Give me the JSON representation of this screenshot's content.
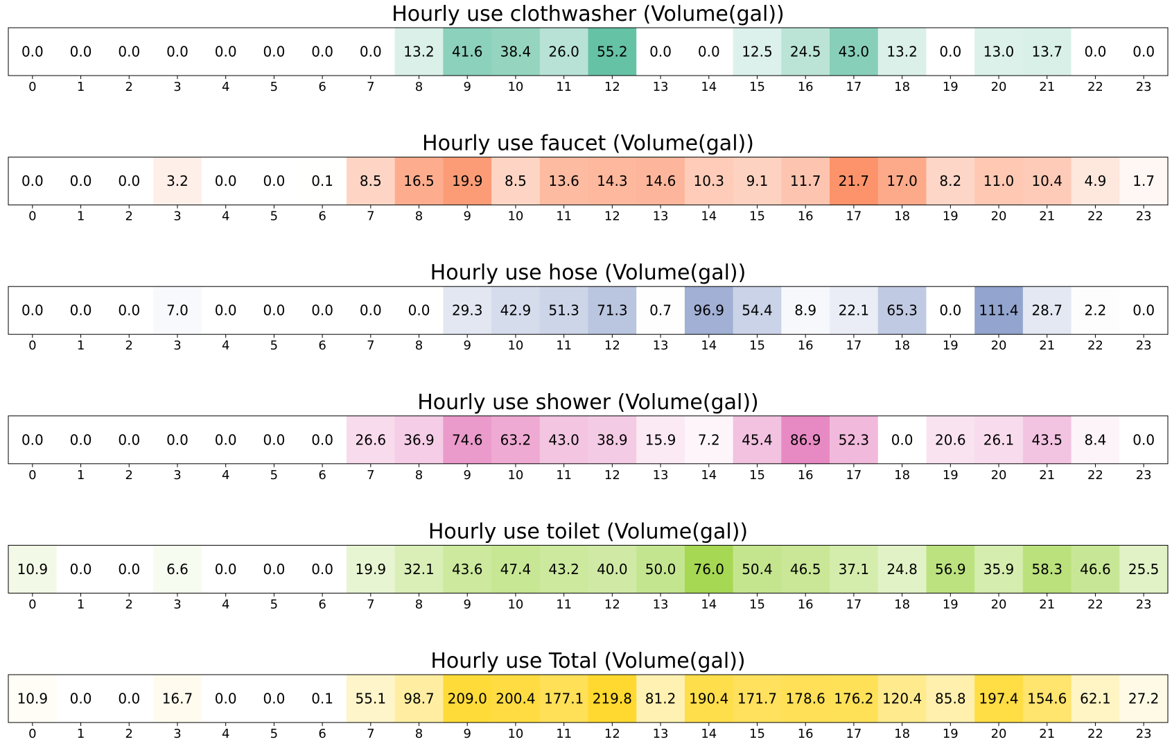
{
  "chart_data": [
    {
      "type": "heatmap",
      "title": "Hourly use clothwasher (Volume(gal))",
      "x": [
        0,
        1,
        2,
        3,
        4,
        5,
        6,
        7,
        8,
        9,
        10,
        11,
        12,
        13,
        14,
        15,
        16,
        17,
        18,
        19,
        20,
        21,
        22,
        23
      ],
      "values": [
        0.0,
        0.0,
        0.0,
        0.0,
        0.0,
        0.0,
        0.0,
        0.0,
        13.2,
        41.6,
        38.4,
        26.0,
        55.2,
        0.0,
        0.0,
        12.5,
        24.5,
        43.0,
        13.2,
        0.0,
        13.0,
        13.7,
        0.0,
        0.0
      ],
      "labels": [
        "0.0",
        "0.0",
        "0.0",
        "0.0",
        "0.0",
        "0.0",
        "0.0",
        "0.0",
        "13.2",
        "41.6",
        "38.4",
        "26.0",
        "55.2",
        "0.0",
        "0.0",
        "12.5",
        "24.5",
        "43.0",
        "13.2",
        "0.0",
        "13.0",
        "13.7",
        "0.0",
        "0.0"
      ],
      "color": "#66c2a5",
      "max_shade": 1.0
    },
    {
      "type": "heatmap",
      "title": "Hourly use faucet (Volume(gal))",
      "x": [
        0,
        1,
        2,
        3,
        4,
        5,
        6,
        7,
        8,
        9,
        10,
        11,
        12,
        13,
        14,
        15,
        16,
        17,
        18,
        19,
        20,
        21,
        22,
        23
      ],
      "values": [
        0.0,
        0.0,
        0.0,
        3.2,
        0.0,
        0.0,
        0.1,
        8.5,
        16.5,
        19.9,
        8.5,
        13.6,
        14.3,
        14.6,
        10.3,
        9.1,
        11.7,
        21.7,
        17.0,
        8.2,
        11.0,
        10.4,
        4.9,
        1.7
      ],
      "labels": [
        "0.0",
        "0.0",
        "0.0",
        "3.2",
        "0.0",
        "0.0",
        "0.1",
        "8.5",
        "16.5",
        "19.9",
        "8.5",
        "13.6",
        "14.3",
        "14.6",
        "10.3",
        "9.1",
        "11.7",
        "21.7",
        "17.0",
        "8.2",
        "11.0",
        "10.4",
        "4.9",
        "1.7"
      ],
      "color": "#fc8d62",
      "max_shade": 0.95
    },
    {
      "type": "heatmap",
      "title": "Hourly use hose (Volume(gal))",
      "x": [
        0,
        1,
        2,
        3,
        4,
        5,
        6,
        7,
        8,
        9,
        10,
        11,
        12,
        13,
        14,
        15,
        16,
        17,
        18,
        19,
        20,
        21,
        22,
        23
      ],
      "values": [
        0.0,
        0.0,
        0.0,
        7.0,
        0.0,
        0.0,
        0.0,
        0.0,
        0.0,
        29.3,
        42.9,
        51.3,
        71.3,
        0.7,
        96.9,
        54.4,
        8.9,
        22.1,
        65.3,
        0.0,
        111.4,
        28.7,
        2.2,
        0.0
      ],
      "labels": [
        "0.0",
        "0.0",
        "0.0",
        "7.0",
        "0.0",
        "0.0",
        "0.0",
        "0.0",
        "0.0",
        "29.3",
        "42.9",
        "51.3",
        "71.3",
        "0.7",
        "96.9",
        "54.4",
        "8.9",
        "22.1",
        "65.3",
        "0.0",
        "111.4",
        "28.7",
        "2.2",
        "0.0"
      ],
      "color": "#8da0cb",
      "max_shade": 0.95
    },
    {
      "type": "heatmap",
      "title": "Hourly use shower (Volume(gal))",
      "x": [
        0,
        1,
        2,
        3,
        4,
        5,
        6,
        7,
        8,
        9,
        10,
        11,
        12,
        13,
        14,
        15,
        16,
        17,
        18,
        19,
        20,
        21,
        22,
        23
      ],
      "values": [
        0.0,
        0.0,
        0.0,
        0.0,
        0.0,
        0.0,
        0.0,
        26.6,
        36.9,
        74.6,
        63.2,
        43.0,
        38.9,
        15.9,
        7.2,
        45.4,
        86.9,
        52.3,
        0.0,
        20.6,
        26.1,
        43.5,
        8.4,
        0.0
      ],
      "labels": [
        "0.0",
        "0.0",
        "0.0",
        "0.0",
        "0.0",
        "0.0",
        "0.0",
        "26.6",
        "36.9",
        "74.6",
        "63.2",
        "43.0",
        "38.9",
        "15.9",
        "7.2",
        "45.4",
        "86.9",
        "52.3",
        "0.0",
        "20.6",
        "26.1",
        "43.5",
        "8.4",
        "0.0"
      ],
      "color": "#e78ac3",
      "max_shade": 1.0
    },
    {
      "type": "heatmap",
      "title": "Hourly use toilet (Volume(gal))",
      "x": [
        0,
        1,
        2,
        3,
        4,
        5,
        6,
        7,
        8,
        9,
        10,
        11,
        12,
        13,
        14,
        15,
        16,
        17,
        18,
        19,
        20,
        21,
        22,
        23
      ],
      "values": [
        10.9,
        0.0,
        0.0,
        6.6,
        0.0,
        0.0,
        0.0,
        19.9,
        32.1,
        43.6,
        47.4,
        43.2,
        40.0,
        50.0,
        76.0,
        50.4,
        46.5,
        37.1,
        24.8,
        56.9,
        35.9,
        58.3,
        46.6,
        25.5
      ],
      "labels": [
        "10.9",
        "0.0",
        "0.0",
        "6.6",
        "0.0",
        "0.0",
        "0.0",
        "19.9",
        "32.1",
        "43.6",
        "47.4",
        "43.2",
        "40.0",
        "50.0",
        "76.0",
        "50.4",
        "46.5",
        "37.1",
        "24.8",
        "56.9",
        "35.9",
        "58.3",
        "46.6",
        "25.5"
      ],
      "color": "#a6d854",
      "max_shade": 1.0
    },
    {
      "type": "heatmap",
      "title": "Hourly use Total (Volume(gal))",
      "x": [
        0,
        1,
        2,
        3,
        4,
        5,
        6,
        7,
        8,
        9,
        10,
        11,
        12,
        13,
        14,
        15,
        16,
        17,
        18,
        19,
        20,
        21,
        22,
        23
      ],
      "values": [
        10.9,
        0.0,
        0.0,
        16.7,
        0.0,
        0.0,
        0.1,
        55.1,
        98.7,
        209.0,
        200.4,
        177.1,
        219.8,
        81.2,
        190.4,
        171.7,
        178.6,
        176.2,
        120.4,
        85.8,
        197.4,
        154.6,
        62.1,
        27.2
      ],
      "labels": [
        "10.9",
        "0.0",
        "0.0",
        "16.7",
        "0.0",
        "0.0",
        "0.1",
        "55.1",
        "98.7",
        "209.0",
        "200.4",
        "177.1",
        "219.8",
        "81.2",
        "190.4",
        "171.7",
        "178.6",
        "176.2",
        "120.4",
        "85.8",
        "197.4",
        "154.6",
        "62.1",
        "27.2"
      ],
      "color": "#ffd92f",
      "max_shade": 1.0
    }
  ]
}
